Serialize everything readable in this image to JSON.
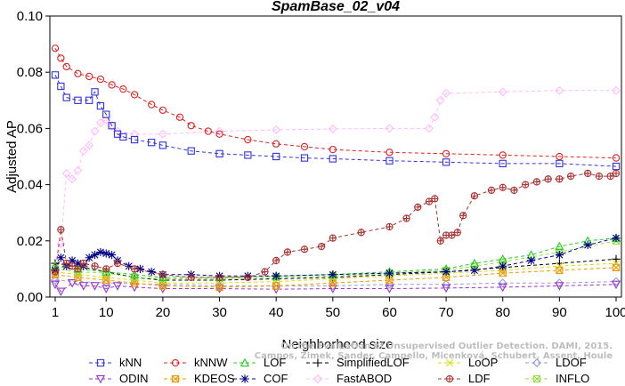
{
  "chart_data": {
    "type": "line",
    "title": "SpamBase_02_v04",
    "xlabel": "Neighborhood size",
    "ylabel": "Adjusted AP",
    "xlim": [
      1,
      100
    ],
    "ylim": [
      0,
      0.1
    ],
    "xticks": [
      "1",
      "10",
      "20",
      "30",
      "40",
      "50",
      "60",
      "70",
      "80",
      "90",
      "100"
    ],
    "yticks": [
      "0.00",
      "0.02",
      "0.04",
      "0.06",
      "0.08",
      "0.10"
    ],
    "grid": false,
    "legend_position": "bottom",
    "watermark": [
      "Campos, Zimek, Sander, Campello, Micenková, Schubert, Assent, Houle",
      "On the Evaluation of Unsupervised Outlier Detection. DAMI, 2015."
    ],
    "series": [
      {
        "name": "kNN",
        "color": "#3333dd",
        "marker": "square",
        "linestyle": "dashed",
        "x": [
          1,
          2,
          3,
          5,
          7,
          8,
          9,
          10,
          11,
          12,
          13,
          15,
          18,
          20,
          25,
          30,
          35,
          40,
          45,
          50,
          60,
          70,
          80,
          90,
          100
        ],
        "values": [
          0.079,
          0.075,
          0.071,
          0.07,
          0.07,
          0.073,
          0.068,
          0.065,
          0.061,
          0.058,
          0.057,
          0.056,
          0.055,
          0.054,
          0.052,
          0.051,
          0.0505,
          0.05,
          0.0495,
          0.0492,
          0.0485,
          0.048,
          0.0475,
          0.0475,
          0.0465
        ]
      },
      {
        "name": "kNNW",
        "color": "#dd2222",
        "marker": "circle",
        "linestyle": "dashed",
        "x": [
          1,
          2,
          3,
          5,
          7,
          9,
          11,
          13,
          15,
          18,
          20,
          23,
          25,
          28,
          30,
          35,
          40,
          45,
          50,
          60,
          70,
          80,
          90,
          100
        ],
        "values": [
          0.0885,
          0.085,
          0.082,
          0.0795,
          0.0785,
          0.0775,
          0.0755,
          0.074,
          0.072,
          0.0685,
          0.0665,
          0.064,
          0.061,
          0.059,
          0.058,
          0.056,
          0.0545,
          0.0535,
          0.0525,
          0.0515,
          0.051,
          0.0505,
          0.05,
          0.0495
        ]
      },
      {
        "name": "LOF",
        "color": "#22cc22",
        "marker": "triangle-up",
        "linestyle": "dashed",
        "x": [
          1,
          5,
          10,
          15,
          20,
          30,
          40,
          50,
          60,
          70,
          75,
          80,
          85,
          90,
          95,
          100
        ],
        "values": [
          0.011,
          0.01,
          0.009,
          0.008,
          0.007,
          0.007,
          0.0075,
          0.008,
          0.009,
          0.01,
          0.012,
          0.0135,
          0.015,
          0.018,
          0.02,
          0.021
        ]
      },
      {
        "name": "SimplifiedLOF",
        "color": "#000000",
        "marker": "plus",
        "linestyle": "dashed",
        "x": [
          1,
          5,
          10,
          15,
          20,
          30,
          40,
          50,
          60,
          70,
          80,
          90,
          100
        ],
        "values": [
          0.012,
          0.011,
          0.009,
          0.007,
          0.006,
          0.006,
          0.0065,
          0.007,
          0.008,
          0.009,
          0.0105,
          0.012,
          0.0135
        ]
      },
      {
        "name": "LoOP",
        "color": "#dddd00",
        "marker": "cross",
        "linestyle": "dashed",
        "x": [
          1,
          5,
          10,
          15,
          20,
          30,
          40,
          50,
          60,
          70,
          80,
          90,
          100
        ],
        "values": [
          0.009,
          0.008,
          0.007,
          0.006,
          0.005,
          0.005,
          0.0055,
          0.0065,
          0.0075,
          0.0085,
          0.0095,
          0.011,
          0.012
        ]
      },
      {
        "name": "LDOF",
        "color": "#9999dd",
        "marker": "diamond",
        "linestyle": "dashed",
        "x": [
          1,
          5,
          10,
          20,
          30,
          40,
          50,
          60,
          70,
          80,
          90,
          100
        ],
        "values": [
          0.006,
          0.0055,
          0.005,
          0.0045,
          0.004,
          0.004,
          0.004,
          0.0045,
          0.0045,
          0.005,
          0.005,
          0.0055
        ]
      },
      {
        "name": "ODIN",
        "color": "#9933cc",
        "marker": "triangle-down",
        "linestyle": "dashed",
        "x": [
          1,
          2,
          4,
          6,
          8,
          10,
          12,
          15,
          20,
          30,
          40,
          50,
          60,
          70,
          80,
          90,
          100
        ],
        "values": [
          0.0045,
          0.002,
          0.005,
          0.004,
          0.004,
          0.003,
          0.004,
          0.0035,
          0.003,
          0.003,
          0.0028,
          0.003,
          0.003,
          0.0032,
          0.0035,
          0.004,
          0.0045
        ]
      },
      {
        "name": "KDEOS",
        "color": "#ee9900",
        "marker": "square-x",
        "linestyle": "dashed",
        "x": [
          1,
          5,
          10,
          15,
          20,
          30,
          40,
          50,
          60,
          70,
          80,
          90,
          100
        ],
        "values": [
          0.008,
          0.007,
          0.006,
          0.005,
          0.004,
          0.0035,
          0.004,
          0.005,
          0.006,
          0.007,
          0.0085,
          0.0095,
          0.0105
        ]
      },
      {
        "name": "COF",
        "color": "#000088",
        "marker": "asterisk",
        "linestyle": "dashed",
        "x": [
          1,
          2,
          3,
          4,
          5,
          6,
          7,
          8,
          9,
          10,
          11,
          12,
          14,
          16,
          18,
          20,
          25,
          30,
          35,
          40,
          50,
          60,
          70,
          75,
          80,
          85,
          90,
          95,
          100
        ],
        "values": [
          0.0095,
          0.014,
          0.011,
          0.013,
          0.012,
          0.011,
          0.014,
          0.015,
          0.016,
          0.0155,
          0.015,
          0.013,
          0.011,
          0.01,
          0.009,
          0.008,
          0.008,
          0.0075,
          0.0075,
          0.0075,
          0.008,
          0.0085,
          0.009,
          0.0095,
          0.011,
          0.013,
          0.015,
          0.0185,
          0.021
        ]
      },
      {
        "name": "FastABOD",
        "color": "#ffbbff",
        "marker": "diamond",
        "linestyle": "dashed",
        "x": [
          1,
          2,
          3,
          4,
          5,
          6,
          7,
          8,
          9,
          10,
          11,
          12,
          15,
          20,
          30,
          40,
          50,
          60,
          67,
          68,
          69,
          70,
          80,
          90,
          100
        ],
        "values": [
          0.007,
          0.019,
          0.044,
          0.042,
          0.045,
          0.052,
          0.054,
          0.059,
          0.062,
          0.063,
          0.061,
          0.059,
          0.058,
          0.058,
          0.059,
          0.0595,
          0.0598,
          0.06,
          0.06,
          0.064,
          0.07,
          0.0725,
          0.073,
          0.0735,
          0.0735
        ]
      },
      {
        "name": "LDF",
        "color": "#aa3333",
        "marker": "circle-plus",
        "linestyle": "dashed",
        "x": [
          1,
          2,
          3,
          4,
          5,
          6,
          8,
          10,
          12,
          15,
          20,
          25,
          30,
          35,
          38,
          40,
          42,
          45,
          48,
          50,
          55,
          60,
          63,
          65,
          67,
          68,
          69,
          70,
          71,
          72,
          73,
          75,
          78,
          80,
          82,
          84,
          86,
          88,
          90,
          92,
          95,
          97,
          99,
          100
        ],
        "values": [
          0.009,
          0.024,
          0.012,
          0.011,
          0.01,
          0.012,
          0.011,
          0.01,
          0.012,
          0.01,
          0.008,
          0.007,
          0.007,
          0.007,
          0.009,
          0.013,
          0.016,
          0.017,
          0.018,
          0.021,
          0.023,
          0.025,
          0.028,
          0.032,
          0.034,
          0.035,
          0.02,
          0.022,
          0.022,
          0.023,
          0.029,
          0.036,
          0.038,
          0.039,
          0.038,
          0.04,
          0.041,
          0.042,
          0.042,
          0.043,
          0.044,
          0.043,
          0.043,
          0.044
        ]
      },
      {
        "name": "INFLO",
        "color": "#99dd44",
        "marker": "square-x",
        "linestyle": "dashed",
        "x": [
          1,
          5,
          10,
          15,
          20,
          30,
          40,
          50,
          60,
          70,
          75,
          80,
          90,
          100
        ],
        "values": [
          0.01,
          0.009,
          0.0085,
          0.007,
          0.0065,
          0.0065,
          0.007,
          0.0075,
          0.0085,
          0.0095,
          0.011,
          0.0125,
          0.016,
          0.02
        ]
      }
    ]
  }
}
